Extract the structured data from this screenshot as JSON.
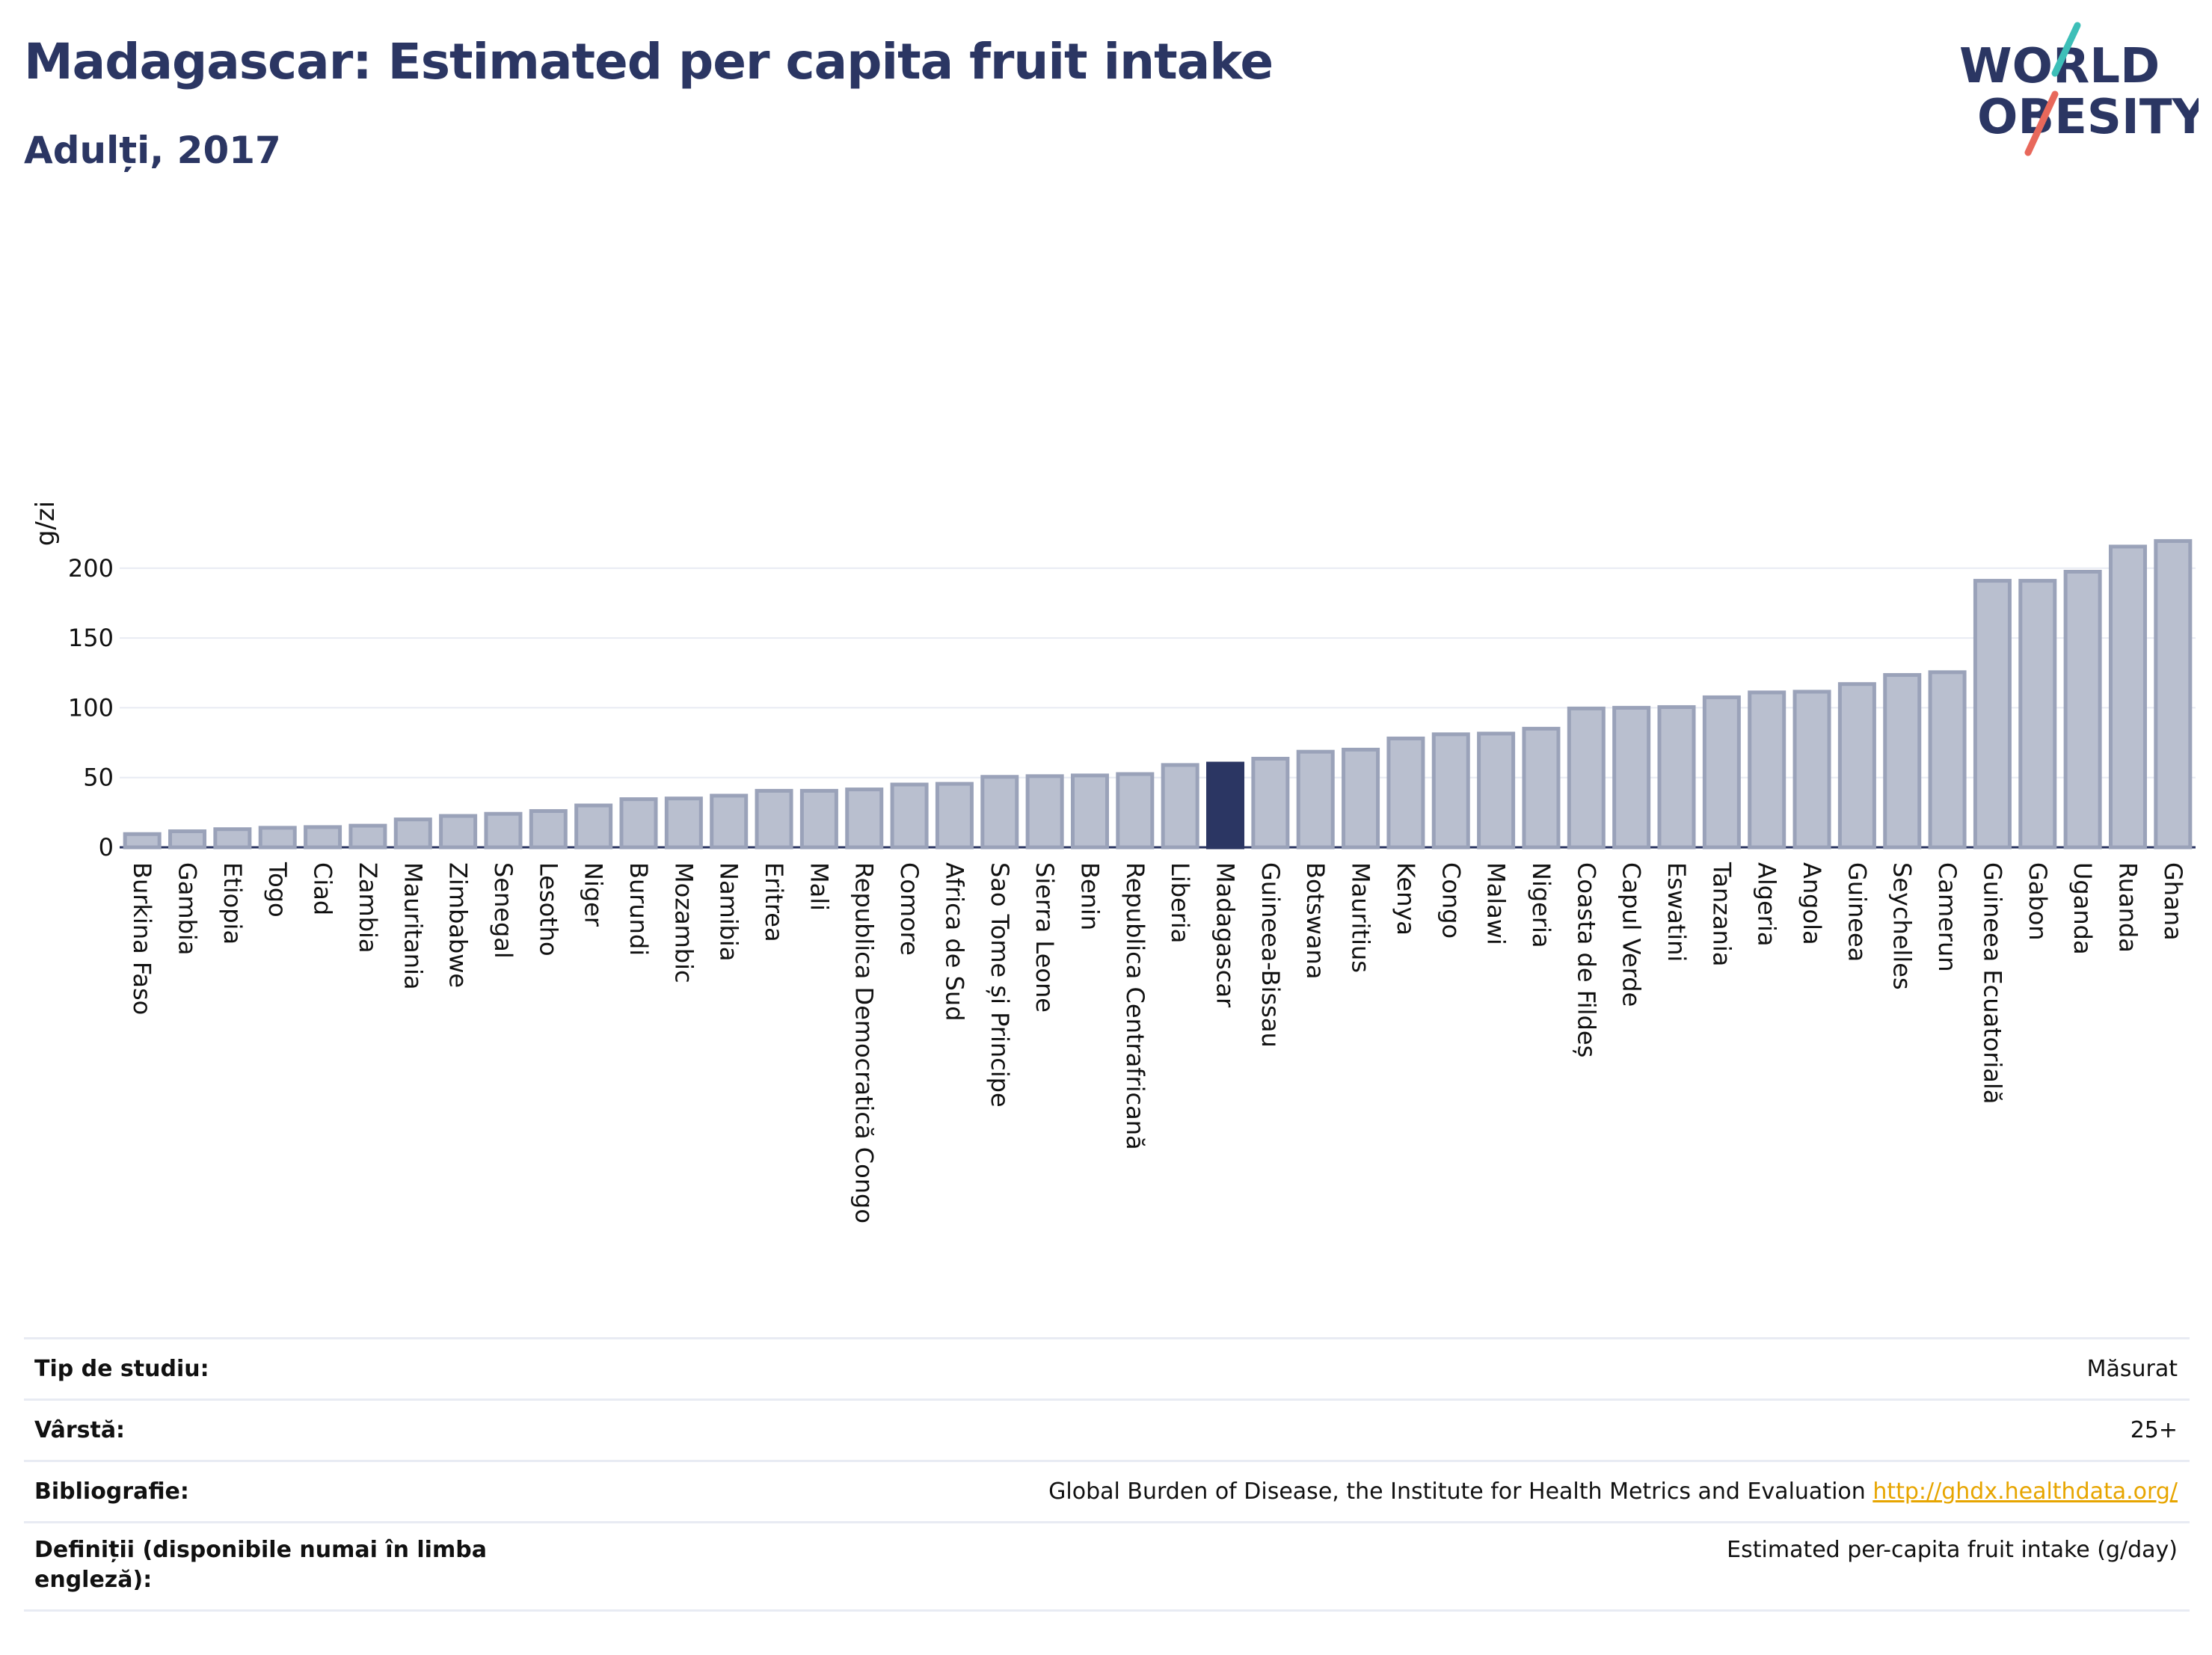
{
  "header": {
    "title": "Madagascar: Estimated per capita fruit intake",
    "subtitle": "Adulți, 2017"
  },
  "logo": {
    "line1": "WORLD",
    "line2": "OBESITY"
  },
  "colors": {
    "bar_default": "#b9bfcf",
    "bar_border": "#9aa2b9",
    "bar_highlight": "#2b3663",
    "text_dark": "#2b3663",
    "grid": "#e8ebf3",
    "logo_teal": "#3dbfb8",
    "logo_coral": "#e8685b",
    "link": "#e7a500"
  },
  "chart_data": {
    "type": "bar",
    "ylabel": "g/zi",
    "xlabel": "",
    "ylim": [
      0,
      222
    ],
    "yticks": [
      0,
      50,
      100,
      150,
      200
    ],
    "grid": true,
    "highlight": "Madagascar",
    "categories": [
      "Burkina Faso",
      "Gambia",
      "Etiopia",
      "Togo",
      "Ciad",
      "Zambia",
      "Mauritania",
      "Zimbabwe",
      "Senegal",
      "Lesotho",
      "Niger",
      "Burundi",
      "Mozambic",
      "Namibia",
      "Eritrea",
      "Mali",
      "Republica Democratică Congo",
      "Comore",
      "Africa de Sud",
      "Sao Tome și Principe",
      "Sierra Leone",
      "Benin",
      "Republica Centrafricană",
      "Liberia",
      "Madagascar",
      "Guineea-Bissau",
      "Botswana",
      "Mauritius",
      "Kenya",
      "Congo",
      "Malawi",
      "Nigeria",
      "Coasta de Fildeș",
      "Capul Verde",
      "Eswatini",
      "Tanzania",
      "Algeria",
      "Angola",
      "Guineea",
      "Seychelles",
      "Camerun",
      "Guineea Ecuatorială",
      "Gabon",
      "Uganda",
      "Ruanda",
      "Ghana"
    ],
    "values": [
      9.5,
      11.5,
      13,
      14,
      14.5,
      15.5,
      20,
      22.5,
      24,
      26,
      30,
      34.5,
      35,
      37,
      40.5,
      40.5,
      41.5,
      45,
      45.5,
      50.5,
      51,
      51.5,
      52.5,
      59,
      60,
      63.5,
      68.5,
      70,
      78,
      81,
      81.5,
      85,
      99.5,
      100,
      100.5,
      107.5,
      111,
      111.5,
      117,
      123.5,
      125.5,
      191,
      191,
      197.5,
      215.5,
      219.5
    ]
  },
  "info": [
    {
      "label": "Tip de studiu:",
      "value": "Măsurat"
    },
    {
      "label": "Vârstă:",
      "value": "25+"
    },
    {
      "label": "Bibliografie:",
      "value": "Global Burden of Disease, the Institute for Health Metrics and Evaluation ",
      "link": "http://ghdx.healthdata.org/"
    },
    {
      "label": "Definiții (disponibile numai în limba engleză):",
      "value": "Estimated per-capita fruit intake (g/day)"
    }
  ]
}
